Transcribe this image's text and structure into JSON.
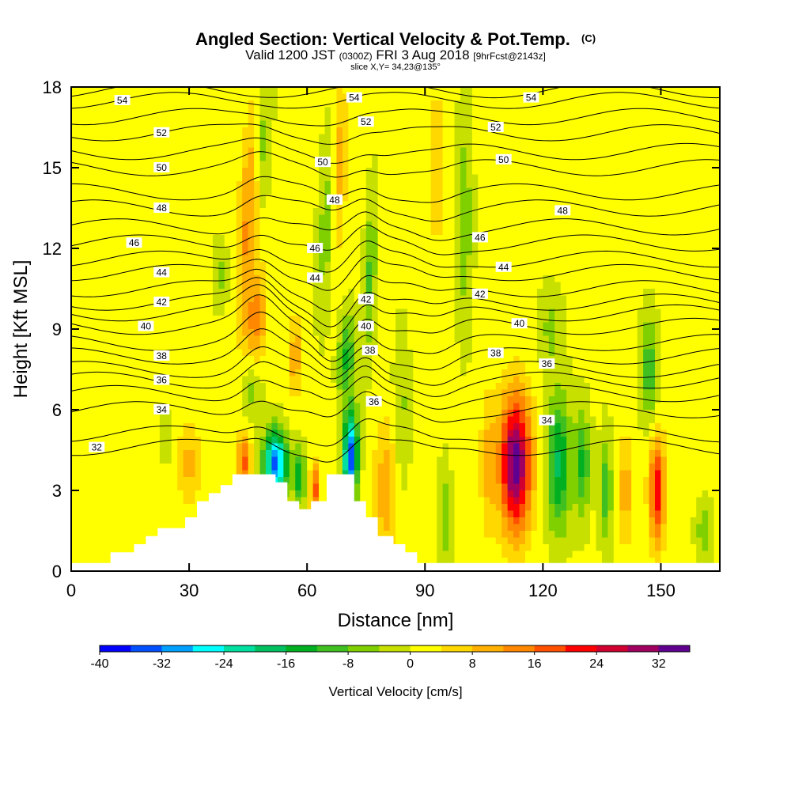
{
  "chart_data": {
    "type": "heatmap",
    "title": {
      "main": "Angled Section: Vertical Velocity & Pot.Temp.",
      "mark": "(C)",
      "valid_a": "Valid 1200 JST",
      "valid_b": "(0300Z)",
      "valid_c": "FRI 3 Aug 2018",
      "valid_d": "[9hrFcst@2143z]",
      "slice": "slice X,Y= 34,23@135°"
    },
    "xlabel": "Distance [nm]",
    "ylabel": "Height [Kft MSL]",
    "xlim": [
      0,
      165
    ],
    "ylim": [
      0,
      18
    ],
    "xticks": [
      0,
      30,
      60,
      90,
      120,
      150
    ],
    "yticks": [
      0,
      3,
      6,
      9,
      12,
      15,
      18
    ],
    "colorbar": {
      "label": "Vertical Velocity [cm/s]",
      "ticks": [
        -40,
        -32,
        -24,
        -16,
        -8,
        0,
        8,
        16,
        24,
        32
      ],
      "min": -40,
      "max": 36,
      "step": 4,
      "colors": [
        "#0000ff",
        "#0050ff",
        "#00a0ff",
        "#00ffff",
        "#00e0a0",
        "#00c060",
        "#00b020",
        "#40c020",
        "#80d000",
        "#c8e000",
        "#ffff00",
        "#ffd800",
        "#ffb000",
        "#ff8800",
        "#ff5000",
        "#ff0000",
        "#d00030",
        "#a00060",
        "#600090"
      ]
    },
    "background_value": 1,
    "velocity_cells": [
      {
        "x": 45,
        "y": 13,
        "sx": 2.5,
        "sy": 4,
        "w": 12,
        "tilt": 0.35
      },
      {
        "x": 47,
        "y": 9,
        "sx": 2.5,
        "sy": 2,
        "w": 14,
        "tilt": 0.35
      },
      {
        "x": 49,
        "y": 16,
        "sx": 1.8,
        "sy": 2.5,
        "w": -8,
        "tilt": 0.35
      },
      {
        "x": 52,
        "y": 4,
        "sx": 3,
        "sy": 1.2,
        "w": -34,
        "tilt": 0.0
      },
      {
        "x": 46,
        "y": 7,
        "sx": 2.5,
        "sy": 1.5,
        "w": -10,
        "tilt": 0.2
      },
      {
        "x": 44,
        "y": 4,
        "sx": 2,
        "sy": 1.2,
        "w": 16,
        "tilt": 0.0
      },
      {
        "x": 58,
        "y": 3.5,
        "sx": 1.5,
        "sy": 1,
        "w": -16,
        "tilt": 0.0
      },
      {
        "x": 62,
        "y": 3,
        "sx": 1.2,
        "sy": 1,
        "w": 18,
        "tilt": 0.0
      },
      {
        "x": 57,
        "y": 8,
        "sx": 2,
        "sy": 1.5,
        "w": 10,
        "tilt": 0.2
      },
      {
        "x": 65,
        "y": 13,
        "sx": 2,
        "sy": 3.5,
        "w": -8,
        "tilt": 0.3
      },
      {
        "x": 68,
        "y": 15,
        "sx": 2,
        "sy": 3,
        "w": 10,
        "tilt": 0.2
      },
      {
        "x": 71,
        "y": 4.2,
        "sx": 1.8,
        "sy": 1.8,
        "w": -36,
        "tilt": 0.1
      },
      {
        "x": 70,
        "y": 8,
        "sx": 2,
        "sy": 1.5,
        "w": -14,
        "tilt": 0.3
      },
      {
        "x": 80,
        "y": 3,
        "sx": 3,
        "sy": 2.5,
        "w": 10,
        "tilt": 0.0
      },
      {
        "x": 76,
        "y": 11,
        "sx": 1.5,
        "sy": 3,
        "w": -10,
        "tilt": 0.2
      },
      {
        "x": 84,
        "y": 6,
        "sx": 2,
        "sy": 3,
        "w": -6,
        "tilt": 0.0
      },
      {
        "x": 95,
        "y": 2,
        "sx": 1.5,
        "sy": 2,
        "w": -8,
        "tilt": 0.0
      },
      {
        "x": 100,
        "y": 13,
        "sx": 2,
        "sy": 4,
        "w": -8,
        "tilt": 0.0
      },
      {
        "x": 93,
        "y": 15,
        "sx": 1.5,
        "sy": 3,
        "w": 8,
        "tilt": 0.0
      },
      {
        "x": 113,
        "y": 4,
        "sx": 4,
        "sy": 2.5,
        "w": 34,
        "tilt": 0.0
      },
      {
        "x": 106,
        "y": 4,
        "sx": 2,
        "sy": 2.5,
        "w": 8,
        "tilt": 0.0
      },
      {
        "x": 124,
        "y": 4,
        "sx": 3,
        "sy": 2.5,
        "w": -18,
        "tilt": 0.0
      },
      {
        "x": 130,
        "y": 4,
        "sx": 2,
        "sy": 2,
        "w": -14,
        "tilt": 0.0
      },
      {
        "x": 136,
        "y": 3,
        "sx": 1.5,
        "sy": 2,
        "w": -12,
        "tilt": 0.0
      },
      {
        "x": 141,
        "y": 3,
        "sx": 1.5,
        "sy": 2,
        "w": 10,
        "tilt": 0.0
      },
      {
        "x": 149,
        "y": 3,
        "sx": 2,
        "sy": 2,
        "w": 22,
        "tilt": 0.0
      },
      {
        "x": 147,
        "y": 7.5,
        "sx": 2,
        "sy": 2,
        "w": -12,
        "tilt": 0.0
      },
      {
        "x": 122,
        "y": 9,
        "sx": 3,
        "sy": 1.5,
        "w": -6,
        "tilt": 0.0
      },
      {
        "x": 38,
        "y": 11,
        "sx": 2,
        "sy": 1.2,
        "w": -6,
        "tilt": 0.0
      },
      {
        "x": 24,
        "y": 5,
        "sx": 1.5,
        "sy": 0.8,
        "w": -6,
        "tilt": 0.0
      },
      {
        "x": 30,
        "y": 4,
        "sx": 3,
        "sy": 1.5,
        "w": 8,
        "tilt": 0.0
      },
      {
        "x": 161,
        "y": 1.5,
        "sx": 2,
        "sy": 1,
        "w": -8,
        "tilt": 0.0
      },
      {
        "x": 20,
        "y": 14,
        "sx": 6,
        "sy": 3,
        "w": 3,
        "tilt": 0.0
      }
    ],
    "terrain_profile": [
      [
        0,
        0.3
      ],
      [
        10,
        0.3
      ],
      [
        10,
        0.7
      ],
      [
        16,
        0.7
      ],
      [
        16,
        1.0
      ],
      [
        19,
        1.0
      ],
      [
        19,
        1.3
      ],
      [
        22,
        1.3
      ],
      [
        22,
        1.6
      ],
      [
        29,
        1.6
      ],
      [
        29,
        2.0
      ],
      [
        32,
        2.0
      ],
      [
        32,
        2.6
      ],
      [
        35,
        2.6
      ],
      [
        35,
        2.9
      ],
      [
        38,
        2.9
      ],
      [
        38,
        3.2
      ],
      [
        41,
        3.2
      ],
      [
        41,
        3.6
      ],
      [
        52,
        3.6
      ],
      [
        52,
        3.3
      ],
      [
        55,
        3.3
      ],
      [
        55,
        2.6
      ],
      [
        58,
        2.6
      ],
      [
        58,
        2.3
      ],
      [
        61,
        2.3
      ],
      [
        61,
        2.6
      ],
      [
        65,
        2.6
      ],
      [
        65,
        3.6
      ],
      [
        72,
        3.6
      ],
      [
        72,
        2.6
      ],
      [
        75,
        2.6
      ],
      [
        75,
        2.0
      ],
      [
        78,
        2.0
      ],
      [
        78,
        1.3
      ],
      [
        82,
        1.3
      ],
      [
        82,
        1.0
      ],
      [
        85,
        1.0
      ],
      [
        85,
        0.7
      ],
      [
        88,
        0.7
      ],
      [
        88,
        0.3
      ],
      [
        165,
        0.3
      ]
    ],
    "theta_contours": [
      {
        "value": 32,
        "label": "32",
        "base": 4.6
      },
      {
        "value": 33,
        "label": "",
        "base": 5.1
      },
      {
        "value": 34,
        "label": "34",
        "base": 6.0
      },
      {
        "value": 35,
        "label": "",
        "base": 6.6
      },
      {
        "value": 36,
        "label": "36",
        "base": 7.1
      },
      {
        "value": 37,
        "label": "",
        "base": 7.5
      },
      {
        "value": 38,
        "label": "38",
        "base": 8.0
      },
      {
        "value": 39,
        "label": "",
        "base": 8.5
      },
      {
        "value": 40,
        "label": "40",
        "base": 9.1
      },
      {
        "value": 41,
        "label": "",
        "base": 9.6
      },
      {
        "value": 42,
        "label": "42",
        "base": 10.0
      },
      {
        "value": 43,
        "label": "",
        "base": 10.5
      },
      {
        "value": 44,
        "label": "44",
        "base": 11.1
      },
      {
        "value": 45,
        "label": "",
        "base": 11.6
      },
      {
        "value": 46,
        "label": "46",
        "base": 12.2
      },
      {
        "value": 47,
        "label": "",
        "base": 12.8
      },
      {
        "value": 48,
        "label": "48",
        "base": 13.5
      },
      {
        "value": 49,
        "label": "",
        "base": 14.1
      },
      {
        "value": 50,
        "label": "50",
        "base": 15.0
      },
      {
        "value": 51,
        "label": "",
        "base": 15.6
      },
      {
        "value": 52,
        "label": "52",
        "base": 16.3
      },
      {
        "value": 53,
        "label": "",
        "base": 16.9
      },
      {
        "value": 54,
        "label": "54",
        "base": 17.5
      },
      {
        "value": 55,
        "label": "",
        "base": 17.9
      }
    ],
    "contour_label_positions": [
      {
        "label": "32",
        "x": 6.5,
        "y": 4.6
      },
      {
        "label": "34",
        "x": 23,
        "y": 6.0
      },
      {
        "label": "36",
        "x": 23,
        "y": 7.1
      },
      {
        "label": "38",
        "x": 23,
        "y": 8.0
      },
      {
        "label": "40",
        "x": 19,
        "y": 9.1
      },
      {
        "label": "42",
        "x": 23,
        "y": 10.0
      },
      {
        "label": "44",
        "x": 23,
        "y": 11.1
      },
      {
        "label": "46",
        "x": 16,
        "y": 12.2
      },
      {
        "label": "48",
        "x": 23,
        "y": 13.5
      },
      {
        "label": "50",
        "x": 23,
        "y": 15.0
      },
      {
        "label": "52",
        "x": 23,
        "y": 16.3
      },
      {
        "label": "54",
        "x": 13,
        "y": 17.5
      },
      {
        "label": "44",
        "x": 62,
        "y": 10.9
      },
      {
        "label": "46",
        "x": 62,
        "y": 12.0
      },
      {
        "label": "48",
        "x": 67,
        "y": 13.8
      },
      {
        "label": "50",
        "x": 64,
        "y": 15.2
      },
      {
        "label": "52",
        "x": 75,
        "y": 16.7
      },
      {
        "label": "54",
        "x": 72,
        "y": 17.6
      },
      {
        "label": "42",
        "x": 75,
        "y": 10.1
      },
      {
        "label": "40",
        "x": 75,
        "y": 9.1
      },
      {
        "label": "38",
        "x": 76,
        "y": 8.2
      },
      {
        "label": "36",
        "x": 77,
        "y": 6.3
      },
      {
        "label": "34",
        "x": 121,
        "y": 5.6
      },
      {
        "label": "36",
        "x": 121,
        "y": 7.7
      },
      {
        "label": "38",
        "x": 108,
        "y": 8.1
      },
      {
        "label": "40",
        "x": 114,
        "y": 9.2
      },
      {
        "label": "42",
        "x": 104,
        "y": 10.3
      },
      {
        "label": "44",
        "x": 110,
        "y": 11.3
      },
      {
        "label": "46",
        "x": 104,
        "y": 12.4
      },
      {
        "label": "48",
        "x": 125,
        "y": 13.4
      },
      {
        "label": "50",
        "x": 110,
        "y": 15.3
      },
      {
        "label": "52",
        "x": 108,
        "y": 16.5
      },
      {
        "label": "54",
        "x": 117,
        "y": 17.6
      }
    ]
  }
}
